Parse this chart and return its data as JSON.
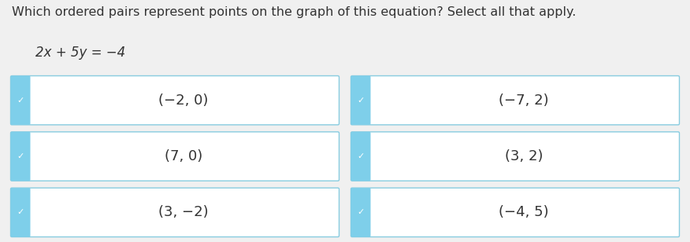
{
  "title": "Which ordered pairs represent points on the graph of this equation? Select all that apply.",
  "equation": "2x + 5y = −4",
  "background_color": "#f0f0f0",
  "box_bg_color": "#ffffff",
  "box_border_color": "#88cce0",
  "sidebar_color": "#7ecfea",
  "check_color": "#ffffff",
  "text_color": "#333333",
  "title_fontsize": 11.5,
  "equation_fontsize": 12,
  "label_fontsize": 13,
  "check_fontsize": 8,
  "options": [
    {
      "label": "(−2, 0)",
      "col": 0,
      "row": 0
    },
    {
      "label": "(−7, 2)",
      "col": 1,
      "row": 0
    },
    {
      "label": "(7, 0)",
      "col": 0,
      "row": 1
    },
    {
      "label": "(3, 2)",
      "col": 1,
      "row": 1
    },
    {
      "label": "(3, −2)",
      "col": 0,
      "row": 2
    },
    {
      "label": "(−4, 5)",
      "col": 1,
      "row": 2
    }
  ],
  "fig_width": 8.76,
  "fig_height": 3.08,
  "dpi": 100
}
